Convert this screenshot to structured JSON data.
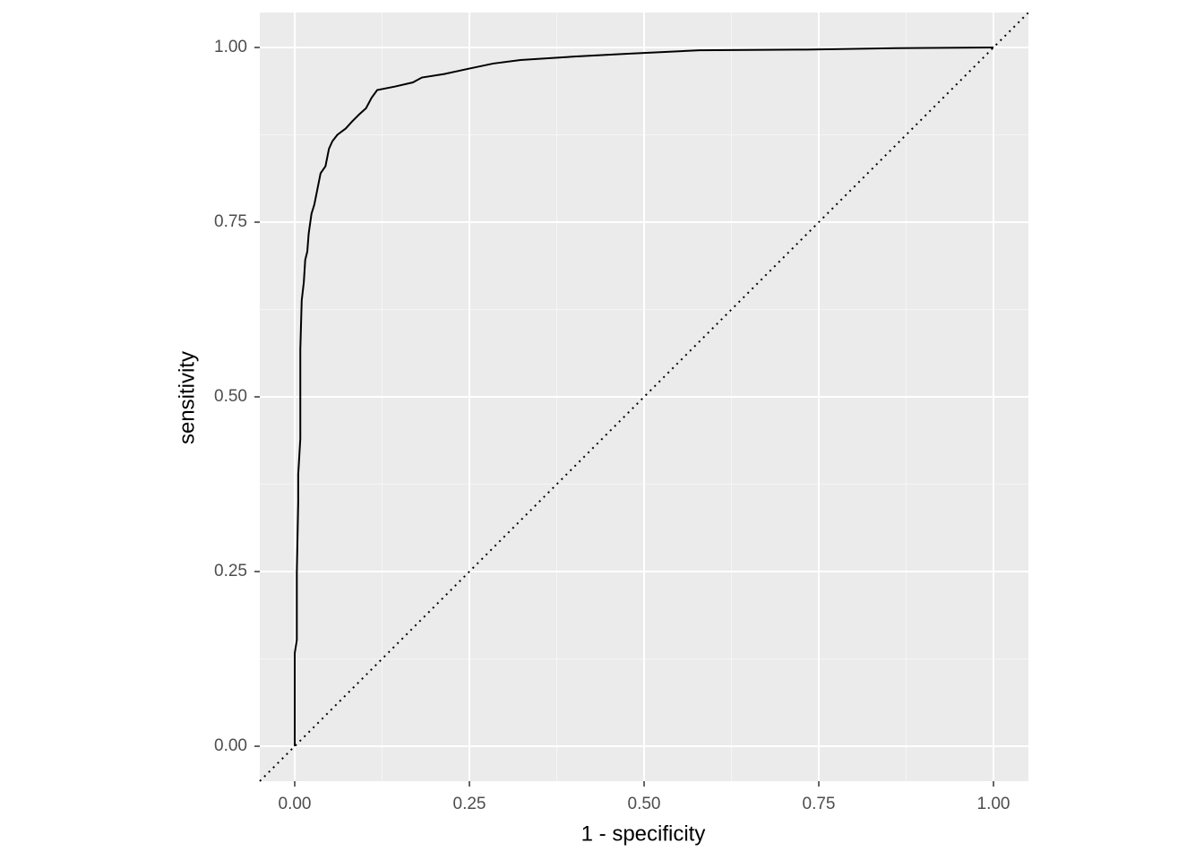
{
  "chart_data": {
    "type": "line",
    "xlabel": "1 - specificity",
    "ylabel": "sensitivity",
    "x": [
      0,
      0,
      0.003,
      0.003,
      0.005,
      0.005,
      0.008,
      0.008,
      0.01,
      0.013,
      0.015,
      0.018,
      0.02,
      0.024,
      0.028,
      0.032,
      0.037,
      0.044,
      0.049,
      0.054,
      0.061,
      0.073,
      0.082,
      0.092,
      0.102,
      0.11,
      0.118,
      0.143,
      0.169,
      0.182,
      0.214,
      0.246,
      0.284,
      0.323,
      0.4,
      0.476,
      0.579,
      0.732,
      0.86,
      1
    ],
    "series": [
      {
        "color": "#000000",
        "values": [
          0,
          0.133,
          0.152,
          0.248,
          0.35,
          0.389,
          0.44,
          0.568,
          0.638,
          0.664,
          0.696,
          0.708,
          0.734,
          0.762,
          0.775,
          0.795,
          0.82,
          0.83,
          0.855,
          0.866,
          0.875,
          0.884,
          0.894,
          0.904,
          0.913,
          0.928,
          0.939,
          0.944,
          0.95,
          0.957,
          0.962,
          0.969,
          0.977,
          0.982,
          0.987,
          0.991,
          0.996,
          0.997,
          0.999,
          1
        ]
      }
    ],
    "xlim": [
      -0.05,
      1.05
    ],
    "ylim": [
      -0.05,
      1.05
    ],
    "xticks": [
      {
        "value": 0,
        "label": "0.00"
      },
      {
        "value": 0.25,
        "label": "0.25"
      },
      {
        "value": 0.5,
        "label": "0.50"
      },
      {
        "value": 0.75,
        "label": "0.75"
      },
      {
        "value": 1,
        "label": "1.00"
      }
    ],
    "yticks": [
      {
        "value": 0,
        "label": "0.00"
      },
      {
        "value": 0.25,
        "label": "0.25"
      },
      {
        "value": 0.5,
        "label": "0.50"
      },
      {
        "value": 0.75,
        "label": "0.75"
      },
      {
        "value": 1,
        "label": "1.00"
      }
    ],
    "grid": true,
    "diagonal": true
  }
}
